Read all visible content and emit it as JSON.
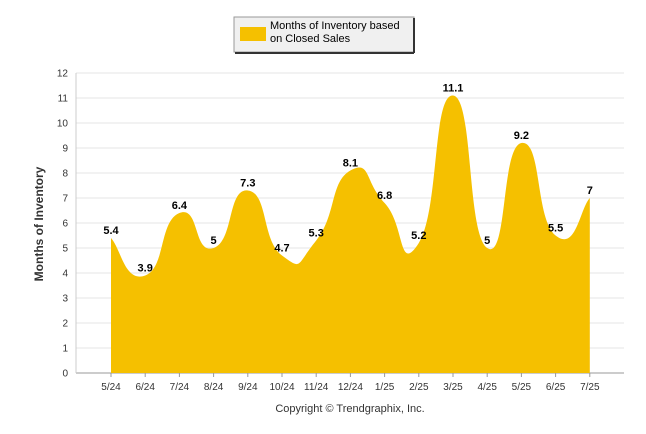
{
  "chart_data": {
    "type": "area",
    "categories": [
      "5/24",
      "6/24",
      "7/24",
      "8/24",
      "9/24",
      "10/24",
      "11/24",
      "12/24",
      "1/25",
      "2/25",
      "3/25",
      "4/25",
      "5/25",
      "6/25",
      "7/25"
    ],
    "series": [
      {
        "name": "Months of Inventory based on Closed Sales",
        "values": [
          5.4,
          3.9,
          6.4,
          5,
          7.3,
          4.7,
          5.3,
          8.1,
          6.8,
          5.2,
          11.1,
          5,
          9.2,
          5.5,
          7
        ],
        "data_labels": [
          "5.4",
          "3.9",
          "6.4",
          "5",
          "7.3",
          "4.7",
          "5.3",
          "8.1",
          "6.8",
          "5.2",
          "11.1",
          "5",
          "9.2",
          "5.5",
          "7"
        ],
        "color": "#F5C000"
      }
    ],
    "ylabel": "Months of Inventory",
    "ylim": [
      0,
      12
    ],
    "yticks": [
      "0",
      "1",
      "2",
      "3",
      "4",
      "5",
      "6",
      "7",
      "8",
      "9",
      "10",
      "11",
      "12"
    ],
    "grid": true,
    "legend_position": "top-center",
    "legend": {
      "line1": "Months of Inventory based",
      "line2": "on Closed Sales"
    }
  },
  "footer": {
    "copyright": "Copyright © Trendgraphix, Inc."
  }
}
